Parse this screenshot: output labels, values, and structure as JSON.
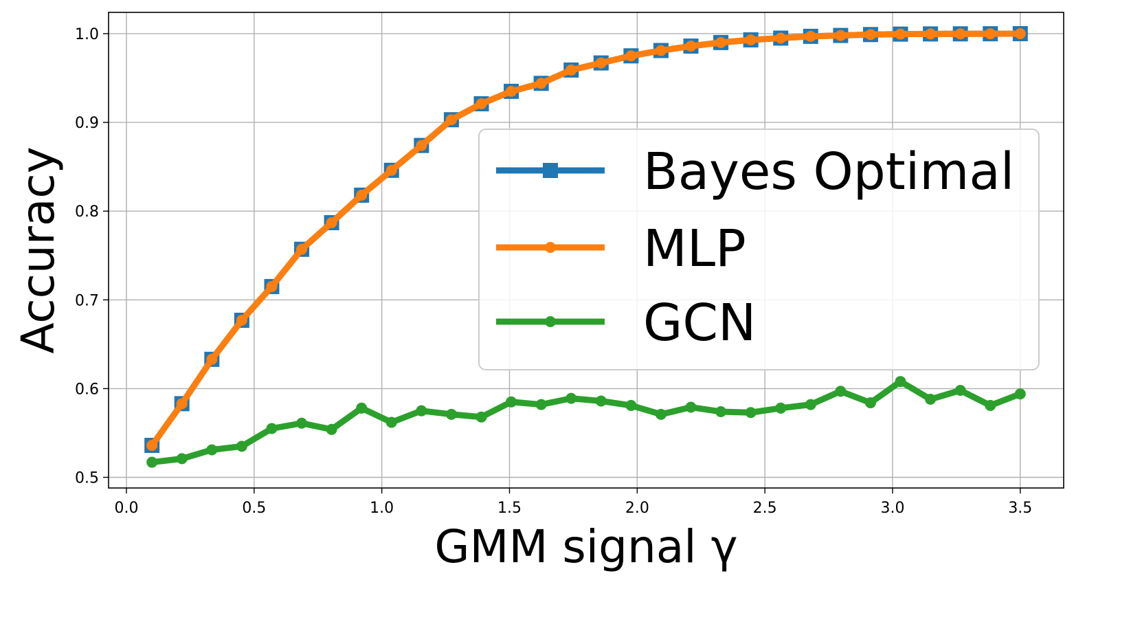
{
  "chart_data": {
    "type": "line",
    "title": "",
    "xlabel": "GMM signal γ",
    "ylabel": "Accuracy",
    "xlim": [
      -0.07,
      3.67
    ],
    "ylim": [
      0.488,
      1.024
    ],
    "xticks": [
      0.0,
      0.5,
      1.0,
      1.5,
      2.0,
      2.5,
      3.0,
      3.5
    ],
    "xtick_labels": [
      "0.0",
      "0.5",
      "1.0",
      "1.5",
      "2.0",
      "2.5",
      "3.0",
      "3.5"
    ],
    "yticks": [
      0.5,
      0.6,
      0.7,
      0.8,
      0.9,
      1.0
    ],
    "ytick_labels": [
      "0.5",
      "0.6",
      "0.7",
      "0.8",
      "0.9",
      "1.0"
    ],
    "grid": true,
    "legend": {
      "placement": "center-right"
    },
    "x": [
      0.1,
      0.2172,
      0.3345,
      0.4517,
      0.569,
      0.6862,
      0.8034,
      0.9207,
      1.0379,
      1.1552,
      1.2724,
      1.3897,
      1.5069,
      1.6241,
      1.7414,
      1.8586,
      1.9759,
      2.0931,
      2.2103,
      2.3276,
      2.4448,
      2.5621,
      2.6793,
      2.7966,
      2.9138,
      3.031,
      3.1483,
      3.2655,
      3.3828,
      3.5
    ],
    "series": [
      {
        "name": "Bayes Optimal",
        "color": "#1f77b4",
        "marker": "square",
        "values": [
          0.536,
          0.583,
          0.633,
          0.677,
          0.715,
          0.757,
          0.787,
          0.818,
          0.846,
          0.874,
          0.903,
          0.921,
          0.935,
          0.944,
          0.959,
          0.967,
          0.975,
          0.981,
          0.986,
          0.99,
          0.993,
          0.995,
          0.997,
          0.998,
          0.999,
          0.9995,
          0.9997,
          0.9998,
          0.9999,
          1.0
        ]
      },
      {
        "name": "MLP",
        "color": "#ff7f0e",
        "marker": "circle",
        "values": [
          0.536,
          0.583,
          0.633,
          0.677,
          0.715,
          0.757,
          0.787,
          0.818,
          0.846,
          0.874,
          0.903,
          0.921,
          0.935,
          0.944,
          0.959,
          0.967,
          0.975,
          0.981,
          0.986,
          0.99,
          0.993,
          0.995,
          0.997,
          0.998,
          0.999,
          0.9995,
          0.9997,
          0.9998,
          0.9999,
          1.0
        ]
      },
      {
        "name": "GCN",
        "color": "#2ca02c",
        "marker": "circle",
        "values": [
          0.517,
          0.521,
          0.531,
          0.535,
          0.555,
          0.561,
          0.554,
          0.578,
          0.562,
          0.575,
          0.571,
          0.568,
          0.585,
          0.582,
          0.589,
          0.586,
          0.581,
          0.571,
          0.579,
          0.574,
          0.573,
          0.578,
          0.582,
          0.597,
          0.584,
          0.608,
          0.588,
          0.598,
          0.581,
          0.594
        ]
      }
    ]
  }
}
